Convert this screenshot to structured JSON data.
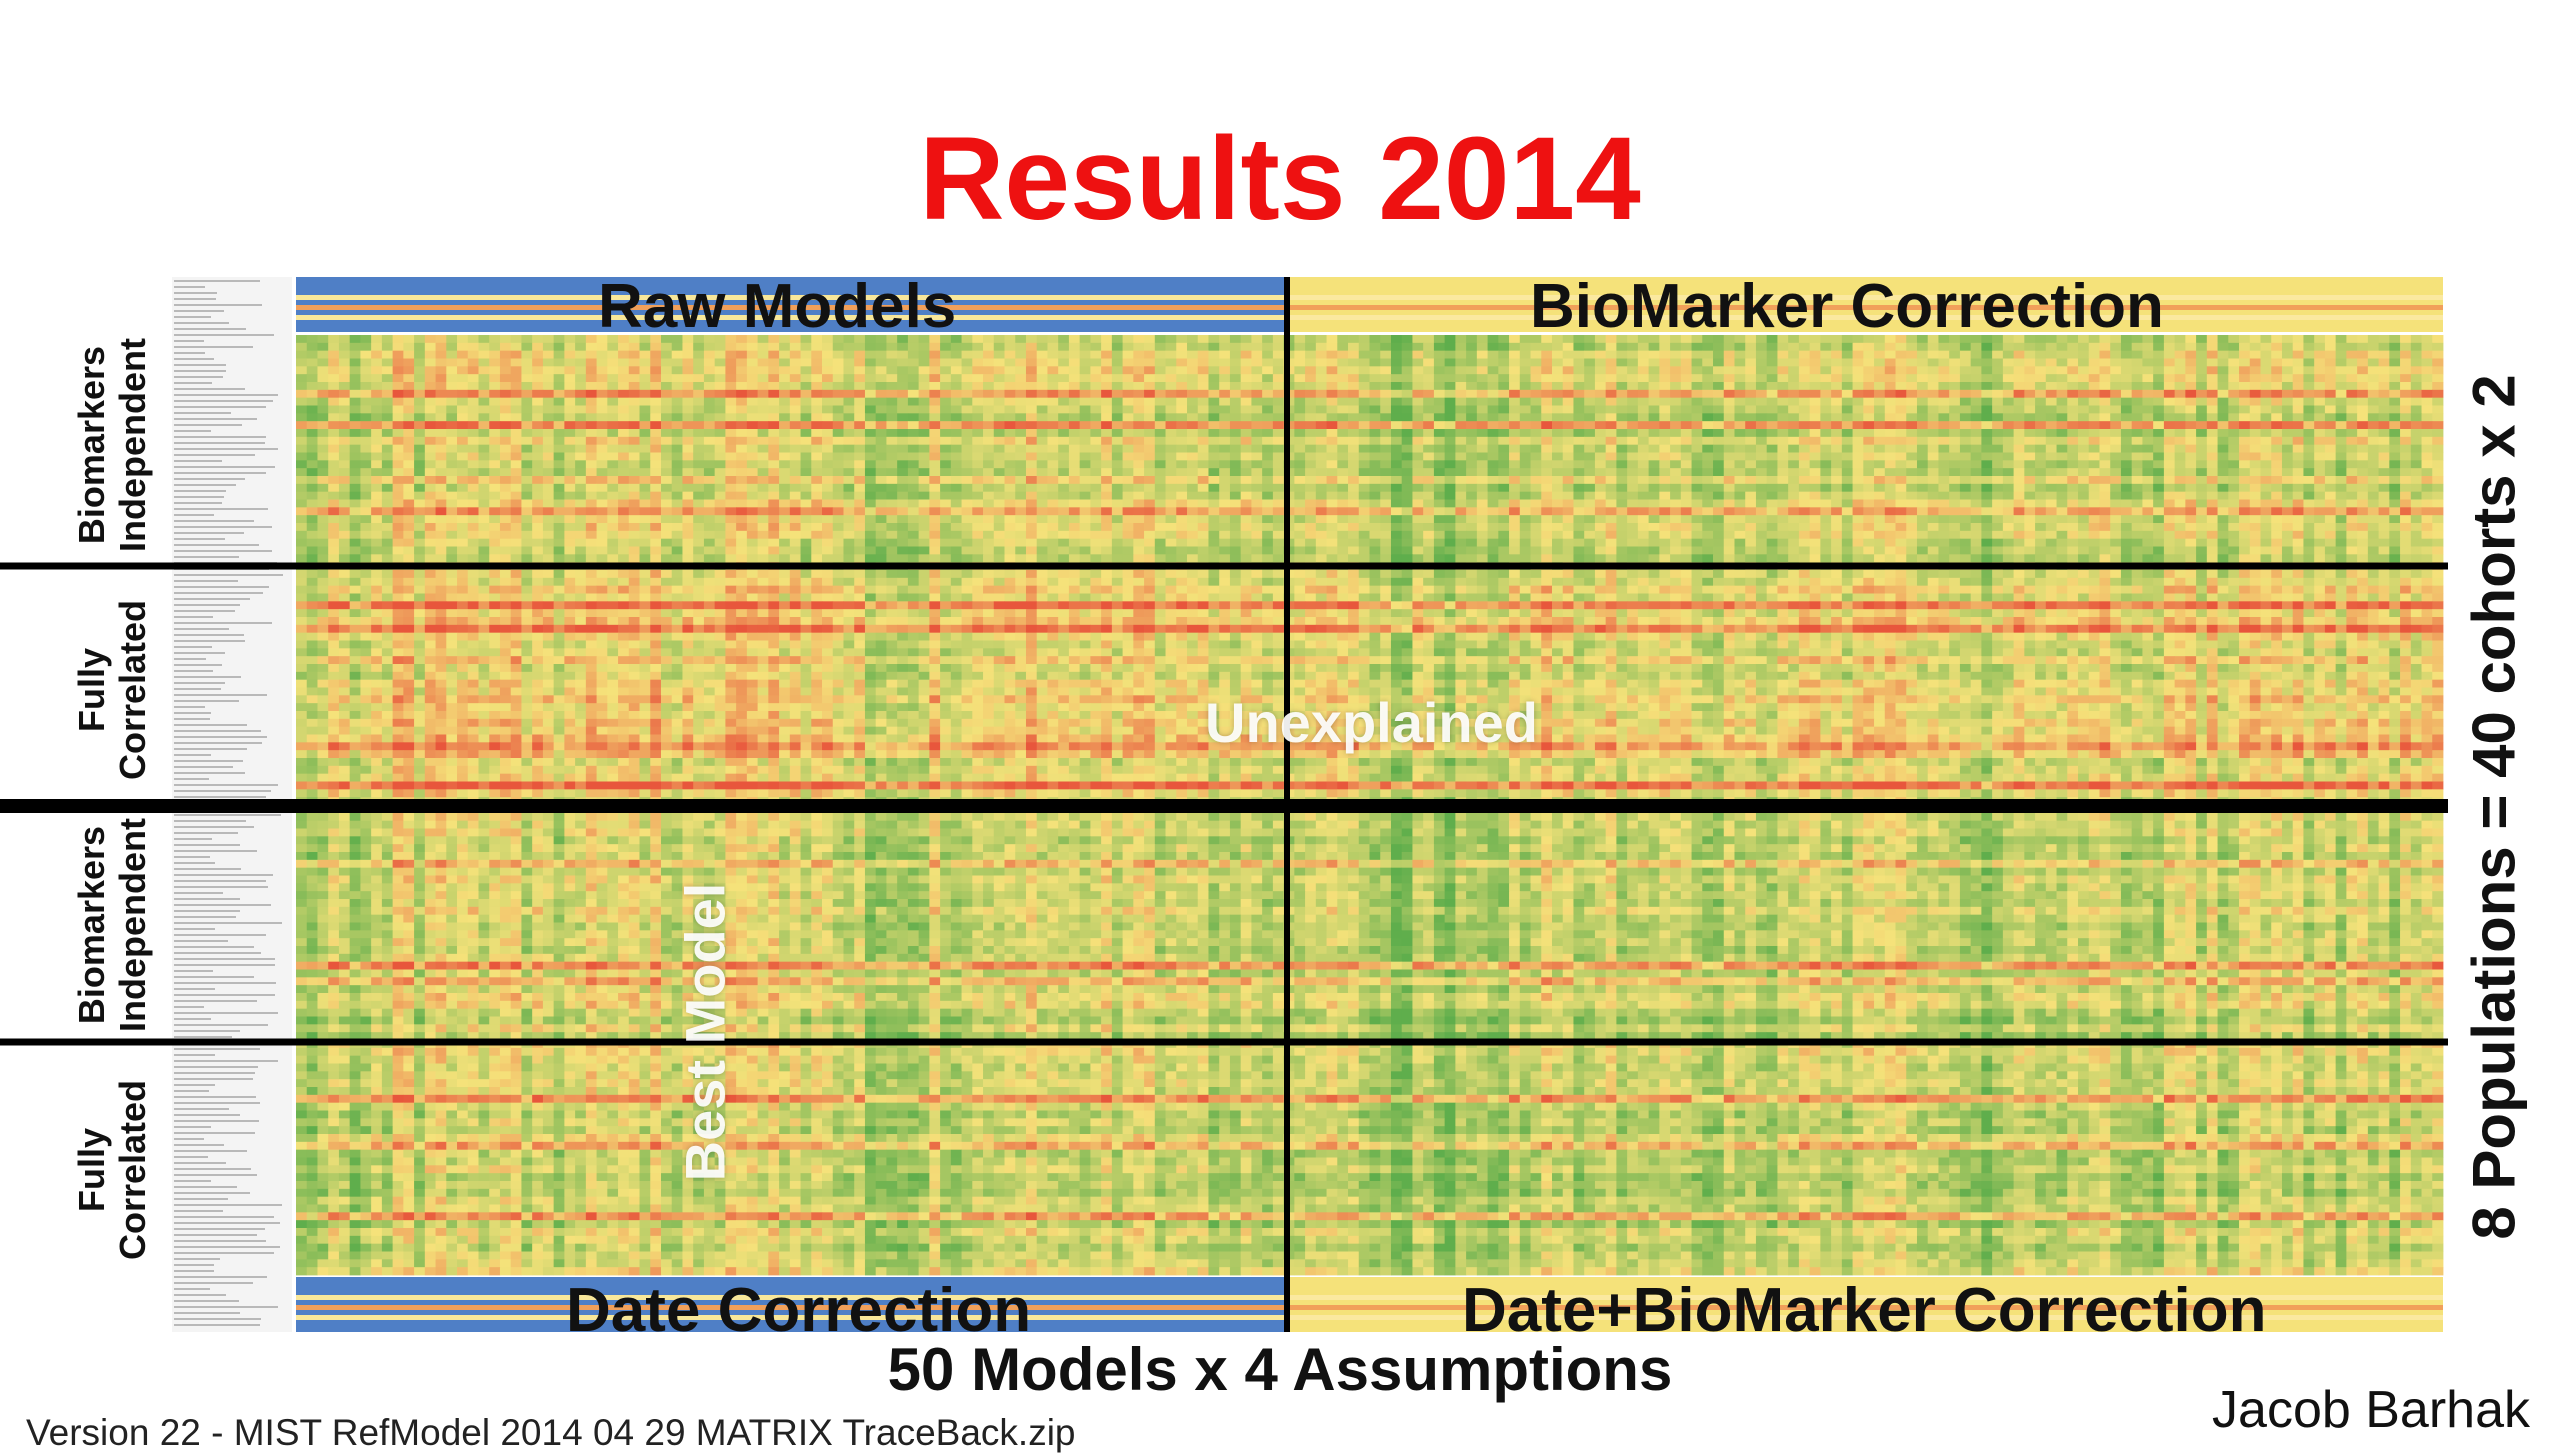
{
  "title": "Results 2014",
  "colors": {
    "title": "#ee1111",
    "blue_band": "#4f7fc6",
    "low": "#5fae4c",
    "mid": "#f5e27a",
    "high": "#e8563c",
    "divider": "#000000"
  },
  "chart_data": {
    "type": "heatmap",
    "title": "Results 2014",
    "columns_label": "50 Models x 4 Assumptions",
    "rows_label": "8 Populations = 40 cohorts x 2",
    "quadrants": [
      "Raw Models",
      "BioMarker Correction",
      "Date Correction",
      "Date+BioMarker Correction"
    ],
    "row_groups": [
      {
        "line1": "Biomarkers",
        "line2": "Independent"
      },
      {
        "line1": "Fully",
        "line2": "Correlated"
      },
      {
        "line1": "Biomarkers",
        "line2": "Independent"
      },
      {
        "line1": "Fully",
        "line2": "Correlated"
      }
    ],
    "annotations": [
      "Best Model",
      "Unexplained"
    ],
    "colormap": "green (good fit) - yellow - red (poor fit)"
  },
  "footer": {
    "author": "Jacob Barhak",
    "version": "Version 22 -  MIST  RefModel  2014  04  29  MATRIX  TraceBack.zip"
  }
}
